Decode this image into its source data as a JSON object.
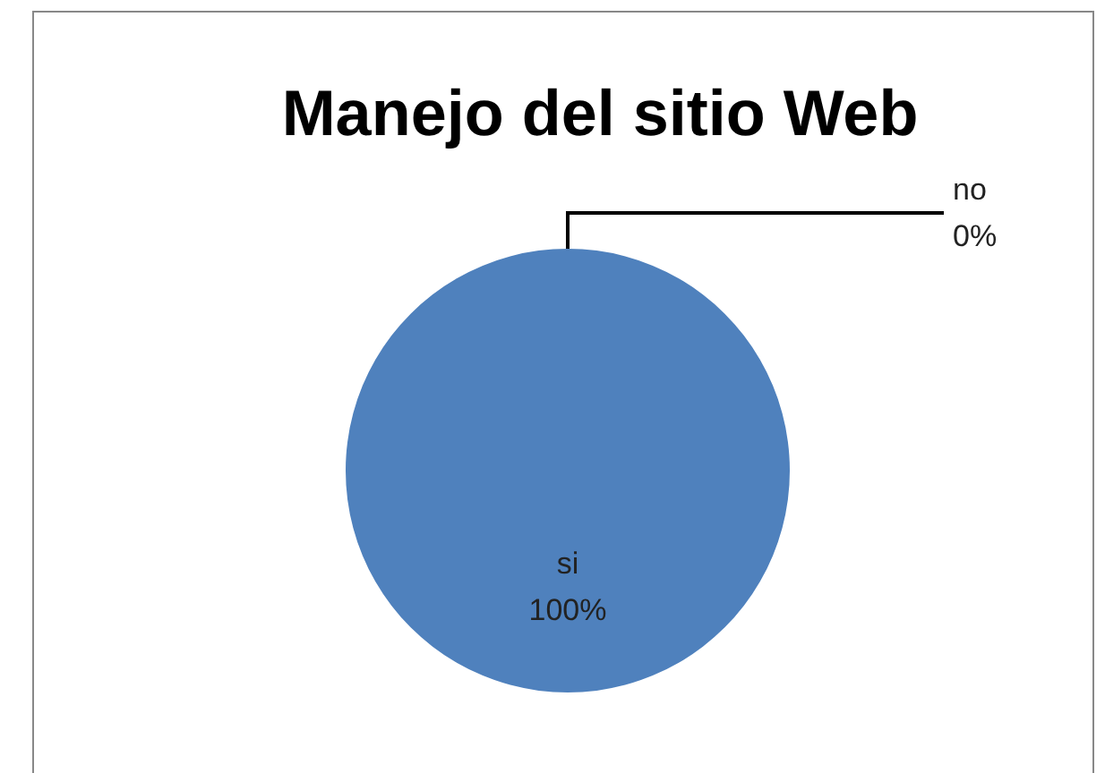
{
  "chart_data": {
    "type": "pie",
    "title": "Manejo del sitio Web",
    "categories": [
      "si",
      "no"
    ],
    "values": [
      100,
      0
    ],
    "value_labels": [
      "100%",
      "0%"
    ],
    "colors": [
      "#4f81bd",
      "#c0504d"
    ],
    "legend": false
  }
}
